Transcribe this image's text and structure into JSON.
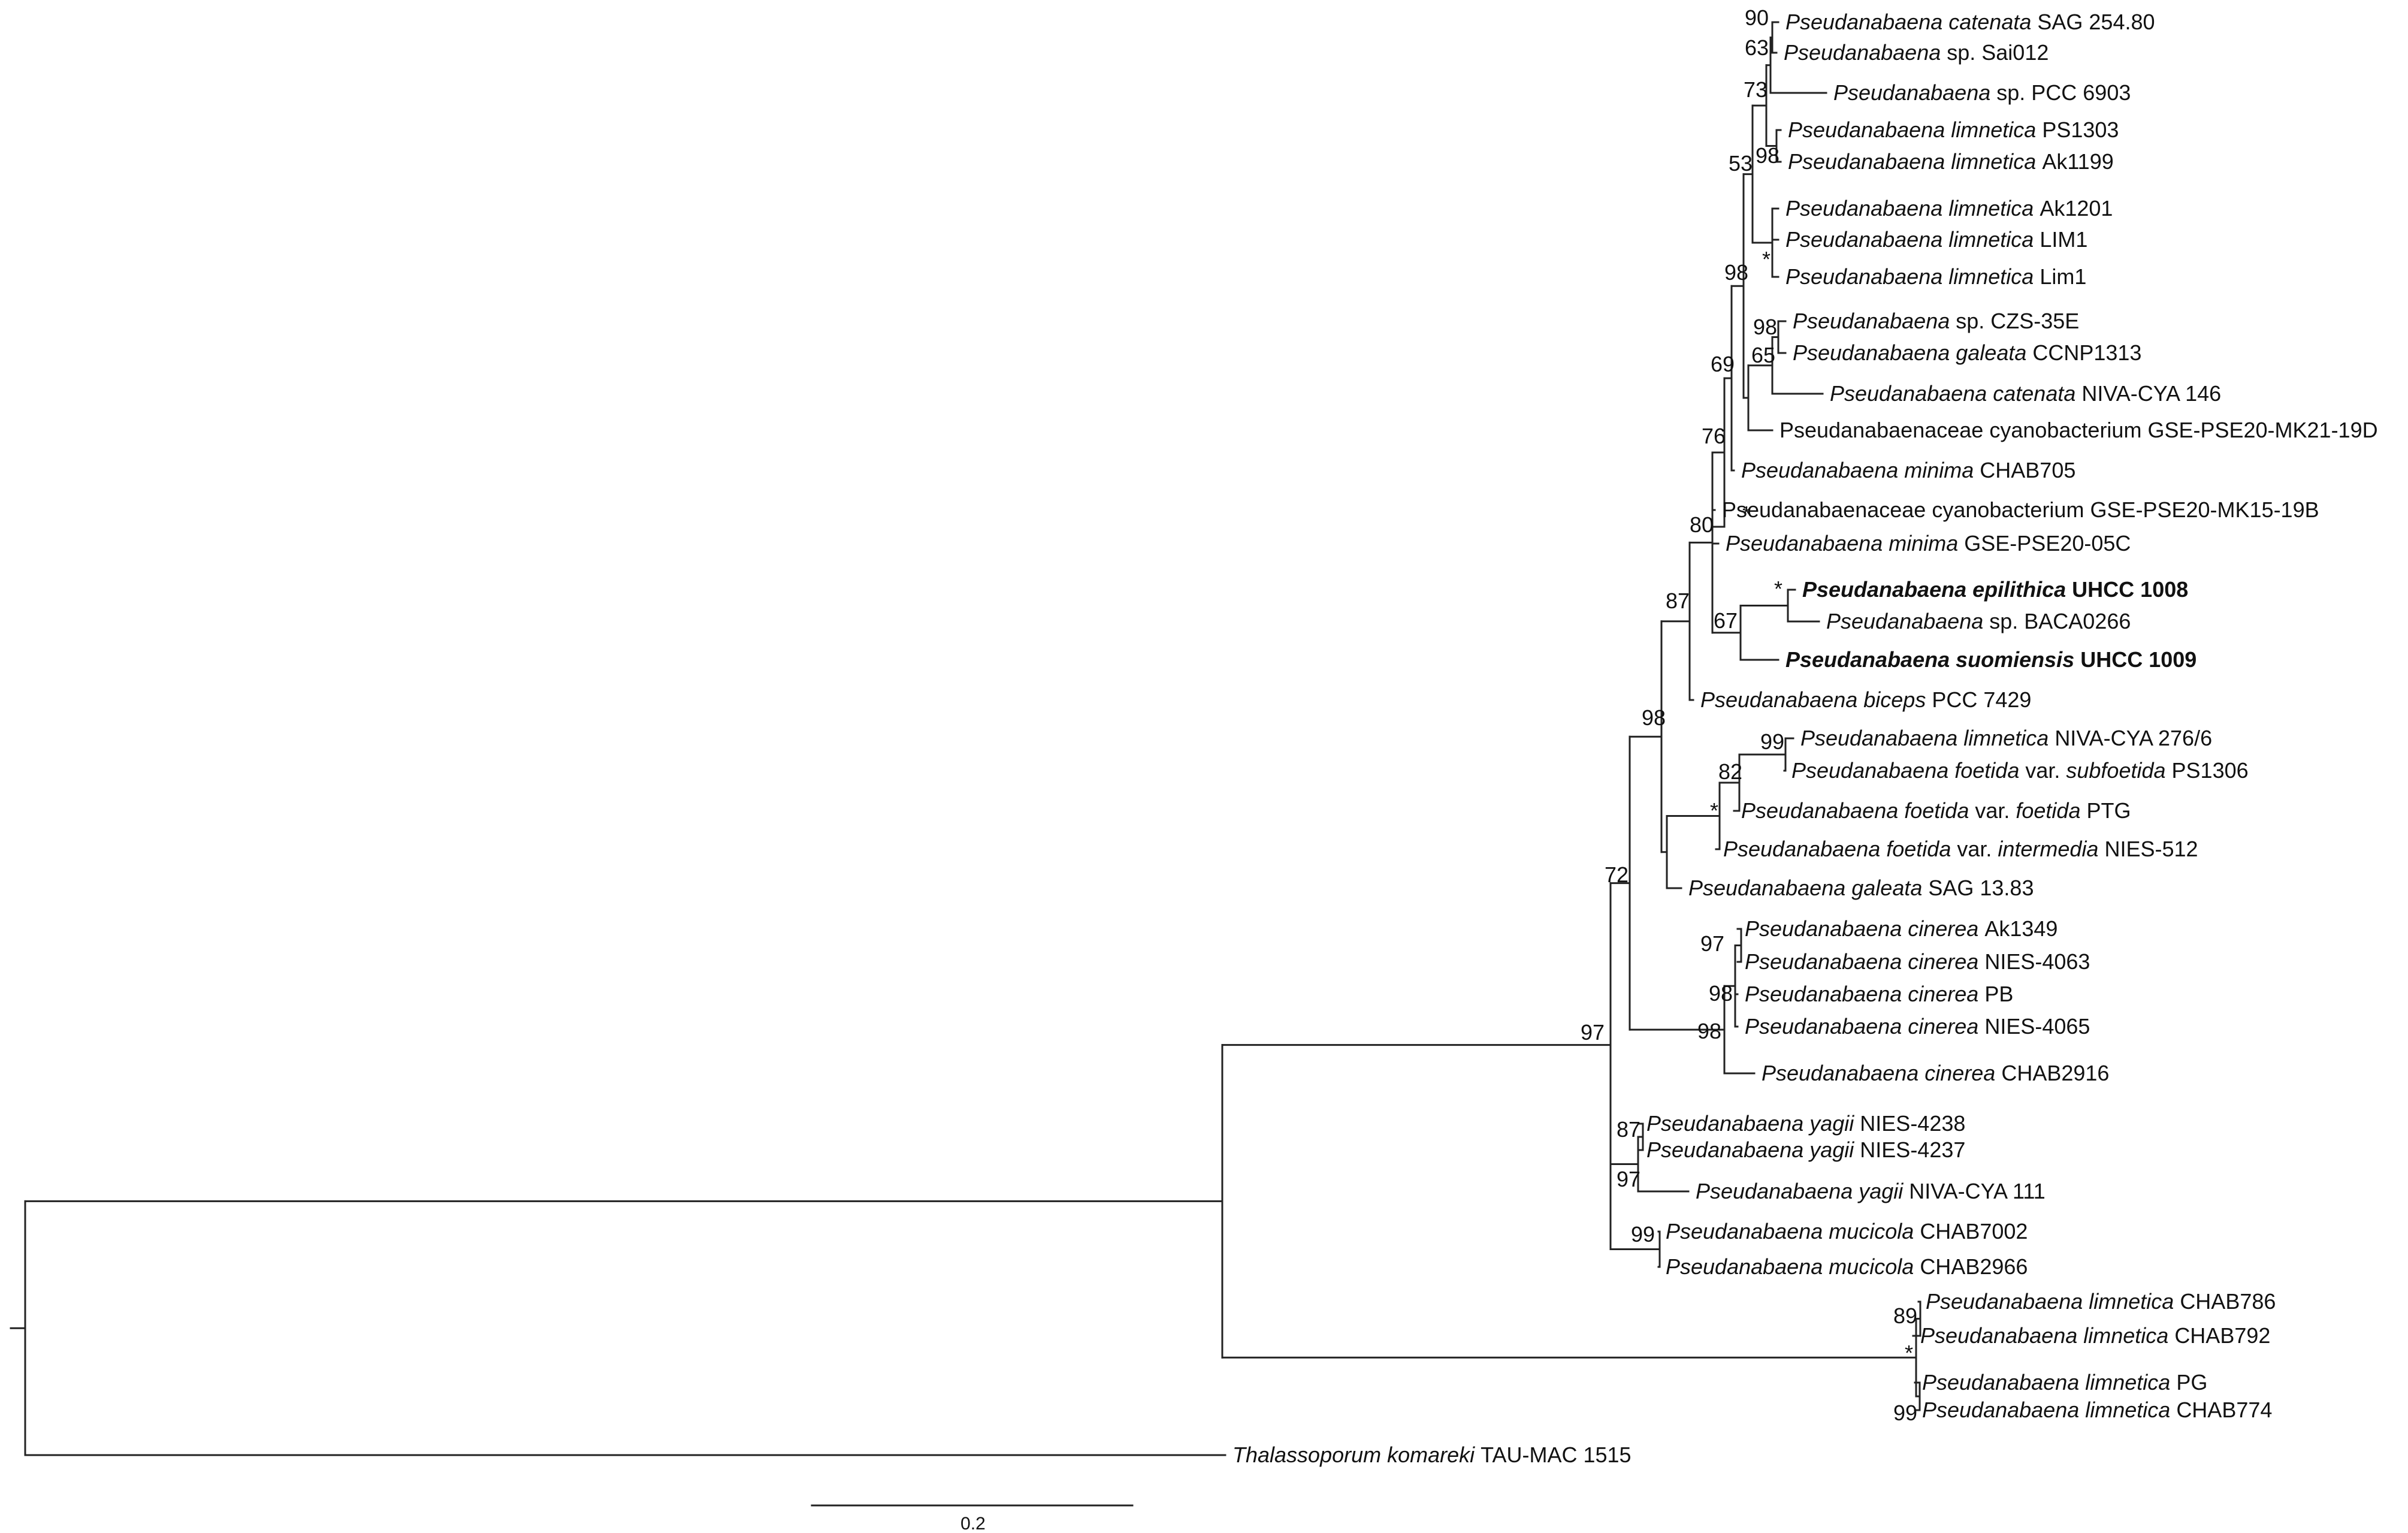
{
  "tree": {
    "tips": [
      {
        "id": "catenata_sag",
        "genus": "Pseudanabaena",
        "epithet": "catenata",
        "strain": "SAG 254.80"
      },
      {
        "id": "sai012",
        "genus": "Pseudanabaena",
        "epithet": "",
        "strain": "sp. Sai012"
      },
      {
        "id": "pcc6903",
        "genus": "Pseudanabaena",
        "epithet": "",
        "strain": "sp. PCC 6903"
      },
      {
        "id": "lim_ps1303",
        "genus": "Pseudanabaena",
        "epithet": "limnetica",
        "strain": "PS1303"
      },
      {
        "id": "lim_ak1199",
        "genus": "Pseudanabaena",
        "epithet": "limnetica",
        "strain": "Ak1199"
      },
      {
        "id": "lim_ak1201",
        "genus": "Pseudanabaena",
        "epithet": "limnetica",
        "strain": "Ak1201"
      },
      {
        "id": "lim_LIM1",
        "genus": "Pseudanabaena",
        "epithet": "limnetica",
        "strain": "LIM1"
      },
      {
        "id": "lim_Lim1",
        "genus": "Pseudanabaena",
        "epithet": "limnetica",
        "strain": "Lim1"
      },
      {
        "id": "czs35e",
        "genus": "Pseudanabaena",
        "epithet": "",
        "strain": "sp. CZS-35E"
      },
      {
        "id": "gal_ccnp",
        "genus": "Pseudanabaena",
        "epithet": "galeata",
        "strain": "CCNP1313"
      },
      {
        "id": "cat_niva146",
        "genus": "Pseudanabaena",
        "epithet": "catenata",
        "strain": "NIVA-CYA 146"
      },
      {
        "id": "pse_mk21",
        "genus": "",
        "epithet": "",
        "strain": "Pseudanabaenaceae cyanobacterium GSE-PSE20-MK21-19D"
      },
      {
        "id": "min_chab705",
        "genus": "Pseudanabaena",
        "epithet": "minima",
        "strain": "CHAB705"
      },
      {
        "id": "pse_mk15",
        "genus": "",
        "epithet": "",
        "strain": "Pseudanabaenaceae cyanobacterium GSE-PSE20-MK15-19B"
      },
      {
        "id": "min_gse",
        "genus": "Pseudanabaena",
        "epithet": "minima",
        "strain": "GSE-PSE20-05C"
      },
      {
        "id": "epilithica",
        "genus": "Pseudanabaena",
        "epithet": "epilithica",
        "strain": "UHCC 1008",
        "bold": true
      },
      {
        "id": "baca0266",
        "genus": "Pseudanabaena",
        "epithet": "",
        "strain": "sp. BACA0266"
      },
      {
        "id": "suomiensis",
        "genus": "Pseudanabaena",
        "epithet": "suomiensis",
        "strain": "UHCC 1009",
        "bold": true
      },
      {
        "id": "biceps",
        "genus": "Pseudanabaena",
        "epithet": "biceps",
        "strain": "PCC 7429"
      },
      {
        "id": "lim_niva276",
        "genus": "Pseudanabaena",
        "epithet": "limnetica",
        "strain": "NIVA-CYA 276/6"
      },
      {
        "id": "foe_subf",
        "genus": "Pseudanabaena",
        "epithet": "foetida",
        "strain": "var. ",
        "var": "subfoetida",
        "tail": " PS1306"
      },
      {
        "id": "foe_foe",
        "genus": "Pseudanabaena",
        "epithet": "foetida",
        "strain": "var. ",
        "var": "foetida",
        "tail": " PTG"
      },
      {
        "id": "foe_int",
        "genus": "Pseudanabaena",
        "epithet": "foetida",
        "strain": "var. ",
        "var": "intermedia",
        "tail": " NIES-512"
      },
      {
        "id": "gal_sag",
        "genus": "Pseudanabaena",
        "epithet": "galeata",
        "strain": "SAG 13.83"
      },
      {
        "id": "cin_ak1349",
        "genus": "Pseudanabaena",
        "epithet": "cinerea",
        "strain": "Ak1349"
      },
      {
        "id": "cin_4063",
        "genus": "Pseudanabaena",
        "epithet": "cinerea",
        "strain": "NIES-4063"
      },
      {
        "id": "cin_pb",
        "genus": "Pseudanabaena",
        "epithet": "cinerea",
        "strain": "PB"
      },
      {
        "id": "cin_4065",
        "genus": "Pseudanabaena",
        "epithet": "cinerea",
        "strain": "NIES-4065"
      },
      {
        "id": "cin_2916",
        "genus": "Pseudanabaena",
        "epithet": "cinerea",
        "strain": "CHAB2916"
      },
      {
        "id": "yag_4238",
        "genus": "Pseudanabaena",
        "epithet": "yagii",
        "strain": "NIES-4238"
      },
      {
        "id": "yag_4237",
        "genus": "Pseudanabaena",
        "epithet": "yagii",
        "strain": "NIES-4237"
      },
      {
        "id": "yag_niva111",
        "genus": "Pseudanabaena",
        "epithet": "yagii",
        "strain": "NIVA-CYA 111"
      },
      {
        "id": "muc_7002",
        "genus": "Pseudanabaena",
        "epithet": "mucicola",
        "strain": "CHAB7002"
      },
      {
        "id": "muc_2966",
        "genus": "Pseudanabaena",
        "epithet": "mucicola",
        "strain": "CHAB2966"
      },
      {
        "id": "lim_786",
        "genus": "Pseudanabaena",
        "epithet": "limnetica",
        "strain": "CHAB786"
      },
      {
        "id": "lim_792",
        "genus": "Pseudanabaena",
        "epithet": "limnetica",
        "strain": "CHAB792"
      },
      {
        "id": "lim_pg",
        "genus": "Pseudanabaena",
        "epithet": "limnetica",
        "strain": "PG"
      },
      {
        "id": "lim_774",
        "genus": "Pseudanabaena",
        "epithet": "limnetica",
        "strain": "CHAB774"
      },
      {
        "id": "thalasso",
        "genus": "Thalassoporum",
        "epithet": "komareki",
        "strain": "TAU-MAC 1515"
      }
    ],
    "support_values": [
      {
        "node": "n_catenata_sai",
        "value": "90"
      },
      {
        "node": "n_sai_grp",
        "value": "63"
      },
      {
        "node": "n_top3",
        "value": "73"
      },
      {
        "node": "n_lim_pair",
        "value": "98"
      },
      {
        "node": "n_top_big",
        "value": "53"
      },
      {
        "node": "n_lim3",
        "value": "*"
      },
      {
        "node": "n_cz_gal",
        "value": "98"
      },
      {
        "node": "n_cz_cat",
        "value": "65"
      },
      {
        "node": "n_upper98",
        "value": "98"
      },
      {
        "node": "n_upper69",
        "value": "69"
      },
      {
        "node": "n_upper76",
        "value": "76"
      },
      {
        "node": "n_mk15",
        "value": "*"
      },
      {
        "node": "n_upper80",
        "value": "80"
      },
      {
        "node": "n_epi_baca",
        "value": "*"
      },
      {
        "node": "n_epi_suo",
        "value": "67"
      },
      {
        "node": "n_upper87",
        "value": "87"
      },
      {
        "node": "n_lim_foe",
        "value": "99"
      },
      {
        "node": "n_foe82",
        "value": "82"
      },
      {
        "node": "n_foe_star",
        "value": "*"
      },
      {
        "node": "n_upper98b",
        "value": "98"
      },
      {
        "node": "n_cin97",
        "value": "97"
      },
      {
        "node": "n_cin98a",
        "value": "98"
      },
      {
        "node": "n_cin98b",
        "value": "98"
      },
      {
        "node": "n_upper72",
        "value": "72"
      },
      {
        "node": "n_yag87",
        "value": "87"
      },
      {
        "node": "n_yag97",
        "value": "97"
      },
      {
        "node": "n_muc99",
        "value": "99"
      },
      {
        "node": "n_ingroup97",
        "value": "97"
      },
      {
        "node": "n_lim89",
        "value": "89"
      },
      {
        "node": "n_lim_star",
        "value": "*"
      },
      {
        "node": "n_lim99",
        "value": "99"
      }
    ],
    "scale_bar": {
      "label": "0.2"
    }
  }
}
